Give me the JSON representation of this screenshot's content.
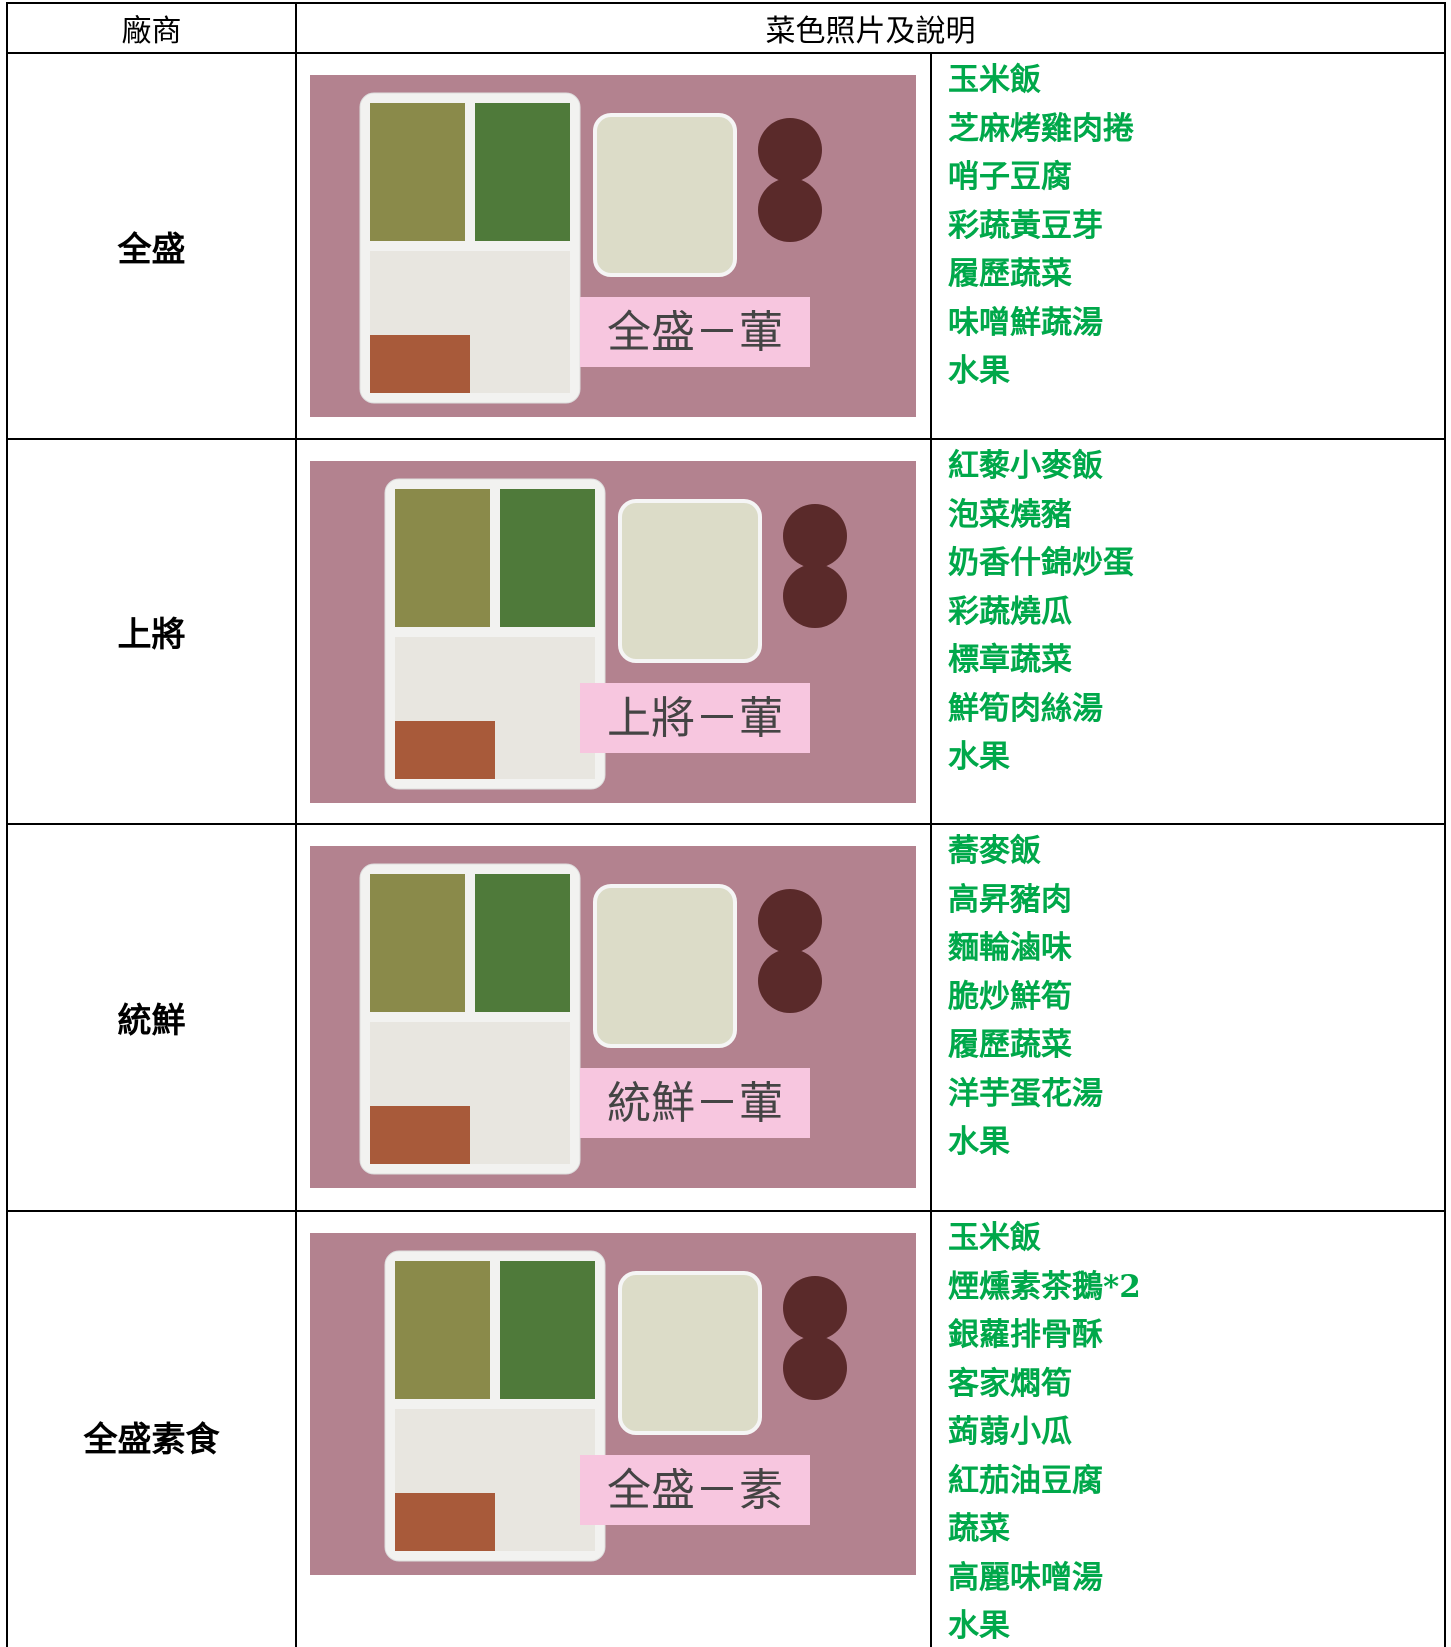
{
  "table": {
    "header": [
      "廠商",
      "菜色照片及說明"
    ],
    "rows": [
      {
        "vendor": "全盛",
        "photo_label": "全盛－葷",
        "items": [
          "玉米飯",
          "芝麻烤雞肉捲",
          "哨子豆腐",
          "彩蔬黃豆芽",
          "履歷蔬菜",
          "味噌鮮蔬湯",
          "水果"
        ]
      },
      {
        "vendor": "上將",
        "photo_label": "上將－葷",
        "items": [
          "紅藜小麥飯",
          "泡菜燒豬",
          "奶香什錦炒蛋",
          "彩蔬燒瓜",
          "標章蔬菜",
          "鮮筍肉絲湯",
          "水果"
        ]
      },
      {
        "vendor": "統鮮",
        "photo_label": "統鮮－葷",
        "items": [
          "蕎麥飯",
          "高昇豬肉",
          "麵輪滷味",
          "脆炒鮮筍",
          "履歷蔬菜",
          "洋芋蛋花湯",
          "水果"
        ]
      },
      {
        "vendor": "全盛素食",
        "photo_label": "全盛－素",
        "items": [
          "玉米飯",
          "煙燻素茶鵝*2",
          "銀蘿排骨酥",
          "客家燜筍",
          "蒟蒻小瓜",
          "紅茄油豆腐",
          "蔬菜",
          "高麗味噌湯",
          "水果"
        ]
      }
    ]
  }
}
